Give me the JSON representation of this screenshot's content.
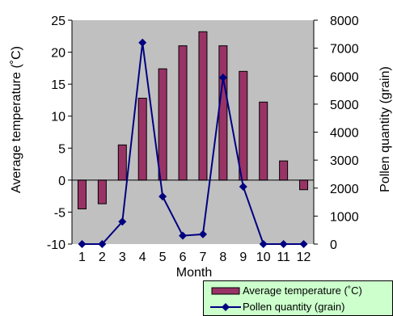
{
  "chart_data": {
    "type": "bar+line",
    "categories": [
      "1",
      "2",
      "3",
      "4",
      "5",
      "6",
      "7",
      "8",
      "9",
      "10",
      "11",
      "12"
    ],
    "xlabel": "Month",
    "ylabel_left": "Average temperature (˚C)",
    "ylabel_right": "Pollen quantity (grain)",
    "ylim_left": [
      -10,
      25
    ],
    "yticks_left": [
      -10,
      -5,
      0,
      5,
      10,
      15,
      20,
      25
    ],
    "ylim_right": [
      0,
      8000
    ],
    "yticks_right": [
      0,
      1000,
      2000,
      3000,
      4000,
      5000,
      6000,
      7000,
      8000
    ],
    "plot_background": "#c0c0c0",
    "grid": false,
    "legend_position": "bottom-right",
    "series": [
      {
        "name": "Average temperature (˚C)",
        "type": "bar",
        "axis": "left",
        "color": "#993366",
        "values": [
          -4.5,
          -3.7,
          5.5,
          12.8,
          17.4,
          21.0,
          23.2,
          21.0,
          17.0,
          12.2,
          3.0,
          -1.5
        ]
      },
      {
        "name": "Pollen quantity (grain)",
        "type": "line",
        "axis": "right",
        "color": "#000080",
        "marker": "diamond",
        "values": [
          0,
          0,
          800,
          7200,
          1700,
          300,
          350,
          5950,
          2050,
          0,
          0,
          0
        ]
      }
    ]
  }
}
